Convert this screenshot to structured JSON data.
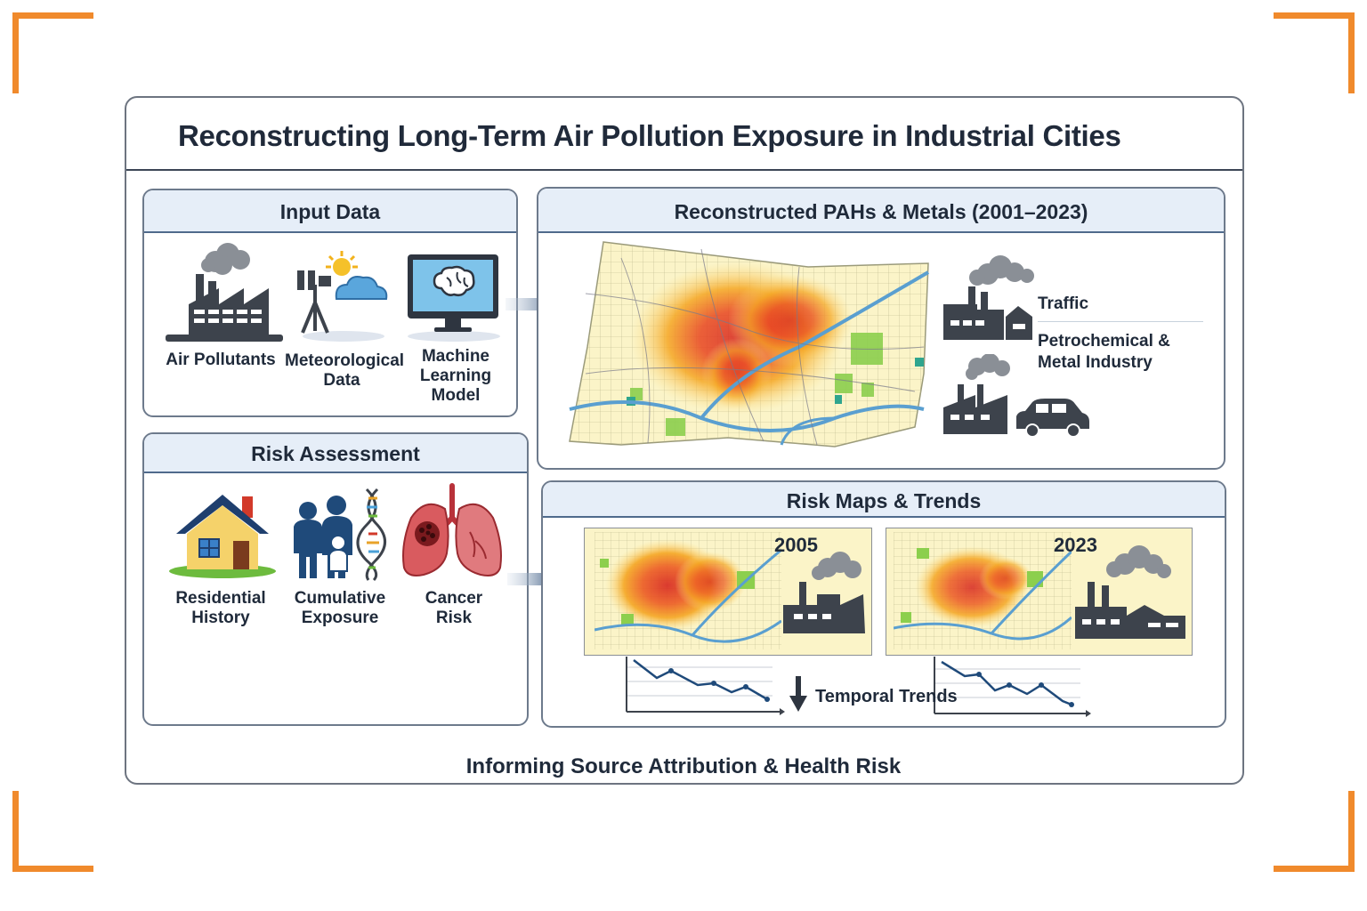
{
  "title": "Reconstructing Long-Term Air Pollution Exposure in Industrial Cities",
  "input_panel": {
    "heading": "Input Data",
    "items": [
      {
        "label": "Air Pollutants",
        "icon": "factory-icon"
      },
      {
        "label": "Meteorological Data",
        "icon": "weather-station-icon"
      },
      {
        "label": "Machine Learning Model",
        "icon": "brain-monitor-icon"
      }
    ]
  },
  "reconstruction_panel": {
    "heading": "Reconstructed PAHs & Metals (2001–2023)",
    "sources": [
      {
        "label": "Traffic",
        "icon": "factory-icon"
      },
      {
        "label": "Petrochemical & Metal Industry",
        "icon": "factory-car-icon"
      }
    ]
  },
  "risk_panel": {
    "heading": "Risk Assessment",
    "items": [
      {
        "label": "Residential History",
        "icon": "house-icon"
      },
      {
        "label": "Cumulative Exposure",
        "icon": "family-dna-icon"
      },
      {
        "label": "Cancer Risk",
        "icon": "lungs-icon"
      }
    ]
  },
  "maps_panel": {
    "heading": "Risk Maps & Trends",
    "maps": [
      {
        "year": "2005"
      },
      {
        "year": "2023"
      }
    ],
    "trend_label": "Temporal Trends"
  },
  "footer": "Informing Source Attribution & Health Risk",
  "colors": {
    "accent_orange": "#f08a2c",
    "panel_header": "#e6eef8",
    "arrow": "#4f6a8c",
    "hot": "#d7261e",
    "warm": "#f5a623",
    "cool": "#8ccf4d"
  }
}
